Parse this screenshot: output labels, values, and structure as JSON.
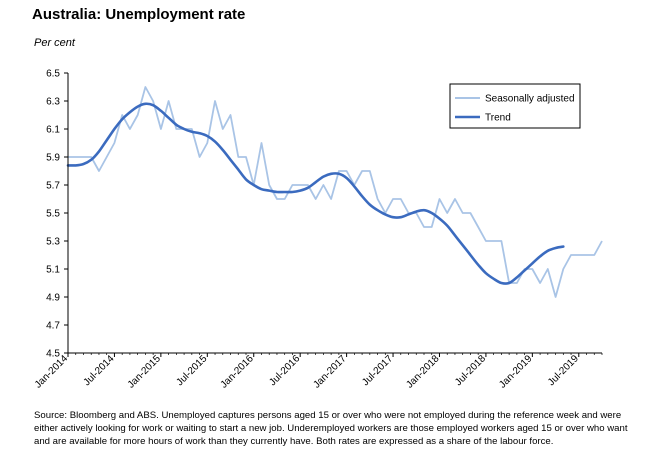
{
  "title": "Australia: Unemployment rate",
  "unit_label": "Per cent",
  "source_note": "Source: Bloomberg and ABS.  Unemployed captures persons aged 15 or over who were not employed during the reference week and were either actively looking for work or waiting to start a new job.  Underemployed workers are those employed workers aged 15 or over who want and are available for more hours of work than they currently have.  Both rates are expressed as a share of the labour force.",
  "colors": {
    "seasonally_adjusted": "#a9c4e6",
    "trend": "#3b6bbf"
  },
  "chart_data": {
    "type": "line",
    "title": "Australia: Unemployment rate",
    "ylabel": "Per cent",
    "xlabel": "",
    "ylim": [
      4.5,
      6.5
    ],
    "y_ticks": [
      "6.5",
      "6.3",
      "6.1",
      "5.9",
      "5.7",
      "5.5",
      "5.3",
      "5.1",
      "4.9",
      "4.7",
      "4.5"
    ],
    "x_tick_labels": [
      "Jan-2014",
      "Jul-2014",
      "Jan-2015",
      "Jul-2015",
      "Jan-2016",
      "Jul-2016",
      "Jan-2017",
      "Jul-2017",
      "Jan-2018",
      "Jul-2018",
      "Jan-2019",
      "Jul-2019"
    ],
    "legend": {
      "position": "top-right",
      "entries": [
        "Seasonally adjusted",
        "Trend"
      ]
    },
    "series": [
      {
        "name": "Seasonally adjusted",
        "values": [
          5.9,
          5.9,
          5.9,
          5.9,
          5.8,
          5.9,
          6.0,
          6.2,
          6.1,
          6.2,
          6.4,
          6.3,
          6.1,
          6.3,
          6.1,
          6.1,
          6.1,
          5.9,
          6.0,
          6.3,
          6.1,
          6.2,
          5.9,
          5.9,
          5.7,
          6.0,
          5.7,
          5.6,
          5.6,
          5.7,
          5.7,
          5.7,
          5.6,
          5.7,
          5.6,
          5.8,
          5.8,
          5.7,
          5.8,
          5.8,
          5.6,
          5.5,
          5.6,
          5.6,
          5.5,
          5.5,
          5.4,
          5.4,
          5.6,
          5.5,
          5.6,
          5.5,
          5.5,
          5.4,
          5.3,
          5.3,
          5.3,
          5.0,
          5.0,
          5.1,
          5.1,
          5.0,
          5.1,
          4.9,
          5.1,
          5.2,
          5.2,
          5.2,
          5.2,
          5.3
        ]
      },
      {
        "name": "Trend",
        "values": [
          5.84,
          5.84,
          5.85,
          5.88,
          5.94,
          6.02,
          6.1,
          6.17,
          6.22,
          6.26,
          6.28,
          6.27,
          6.23,
          6.18,
          6.13,
          6.1,
          6.08,
          6.07,
          6.05,
          6.01,
          5.95,
          5.88,
          5.81,
          5.74,
          5.7,
          5.67,
          5.66,
          5.65,
          5.65,
          5.65,
          5.66,
          5.68,
          5.72,
          5.76,
          5.78,
          5.78,
          5.75,
          5.69,
          5.62,
          5.56,
          5.52,
          5.49,
          5.47,
          5.47,
          5.49,
          5.51,
          5.52,
          5.5,
          5.46,
          5.41,
          5.34,
          5.27,
          5.2,
          5.13,
          5.07,
          5.03,
          5.0,
          5.0,
          5.04,
          5.09,
          5.14,
          5.19,
          5.23,
          5.25,
          5.26
        ]
      }
    ]
  }
}
